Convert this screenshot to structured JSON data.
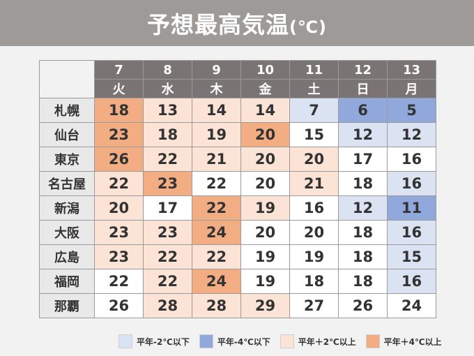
{
  "header": {
    "title": "予想最高気温",
    "unit": "(℃)"
  },
  "colors": {
    "below2": "#dbe3f2",
    "below4": "#90a8db",
    "above2": "#fbe4d6",
    "above4": "#f2ad82",
    "header_bg": "#9e9a98",
    "day_header_bg": "#7a7574"
  },
  "days": [
    {
      "date": "7",
      "weekday": "火"
    },
    {
      "date": "8",
      "weekday": "水"
    },
    {
      "date": "9",
      "weekday": "木"
    },
    {
      "date": "10",
      "weekday": "金"
    },
    {
      "date": "11",
      "weekday": "土"
    },
    {
      "date": "12",
      "weekday": "日"
    },
    {
      "date": "13",
      "weekday": "月"
    }
  ],
  "rows": [
    {
      "city": "札幌",
      "values": [
        "18",
        "13",
        "14",
        "14",
        "7",
        "6",
        "5"
      ],
      "levels": [
        "above4",
        "above2",
        "above2",
        "above2",
        "below2",
        "below4",
        "below4"
      ]
    },
    {
      "city": "仙台",
      "values": [
        "23",
        "18",
        "19",
        "20",
        "15",
        "12",
        "12"
      ],
      "levels": [
        "above4",
        "above2",
        "above2",
        "above4",
        "none",
        "below2",
        "below2"
      ]
    },
    {
      "city": "東京",
      "values": [
        "26",
        "22",
        "21",
        "20",
        "20",
        "17",
        "16"
      ],
      "levels": [
        "above4",
        "above2",
        "above2",
        "above2",
        "above2",
        "none",
        "none"
      ]
    },
    {
      "city": "名古屋",
      "values": [
        "22",
        "23",
        "22",
        "20",
        "21",
        "18",
        "16"
      ],
      "levels": [
        "above2",
        "above4",
        "none",
        "none",
        "above2",
        "none",
        "below2"
      ]
    },
    {
      "city": "新潟",
      "values": [
        "20",
        "17",
        "22",
        "19",
        "16",
        "12",
        "11"
      ],
      "levels": [
        "above2",
        "none",
        "above4",
        "above2",
        "none",
        "below2",
        "below4"
      ]
    },
    {
      "city": "大阪",
      "values": [
        "23",
        "23",
        "24",
        "20",
        "20",
        "18",
        "16"
      ],
      "levels": [
        "above2",
        "above2",
        "above4",
        "none",
        "none",
        "none",
        "below2"
      ]
    },
    {
      "city": "広島",
      "values": [
        "23",
        "22",
        "22",
        "19",
        "19",
        "18",
        "15"
      ],
      "levels": [
        "above2",
        "above2",
        "above2",
        "none",
        "none",
        "none",
        "below2"
      ]
    },
    {
      "city": "福岡",
      "values": [
        "22",
        "22",
        "24",
        "19",
        "18",
        "18",
        "16"
      ],
      "levels": [
        "none",
        "above2",
        "above4",
        "none",
        "none",
        "none",
        "below2"
      ]
    },
    {
      "city": "那覇",
      "values": [
        "26",
        "28",
        "28",
        "29",
        "27",
        "26",
        "24"
      ],
      "levels": [
        "none",
        "above2",
        "above2",
        "above2",
        "none",
        "none",
        "none"
      ]
    }
  ],
  "legend": [
    {
      "label": "平年-2℃以下",
      "level": "below2"
    },
    {
      "label": "平年-4℃以下",
      "level": "below4"
    },
    {
      "label": "平年＋2℃以上",
      "level": "above2"
    },
    {
      "label": "平年＋4℃以上",
      "level": "above4"
    }
  ]
}
